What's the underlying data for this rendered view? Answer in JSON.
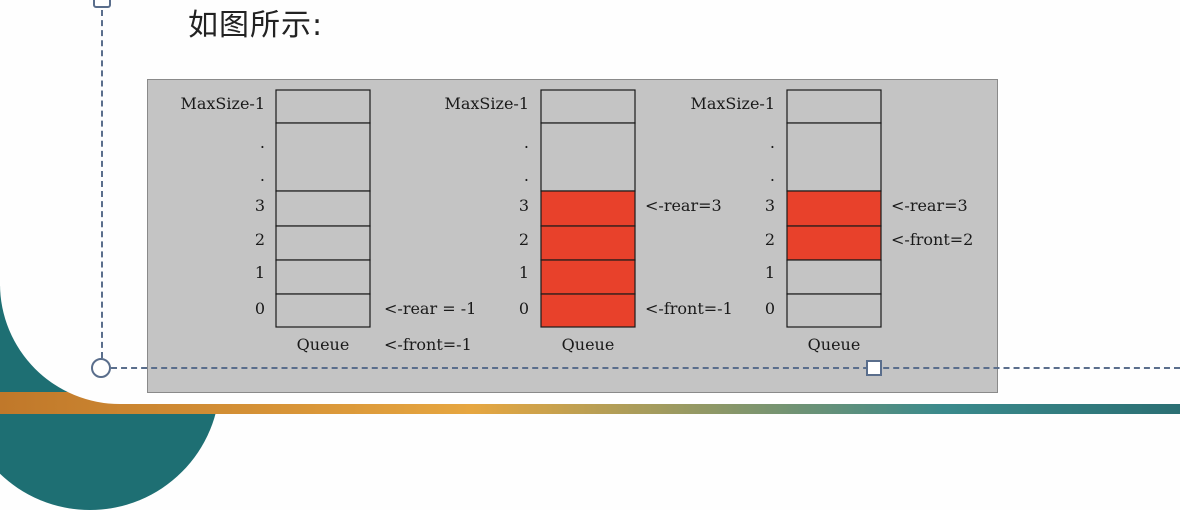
{
  "heading": "如图所示:",
  "colors": {
    "filled": "#e8412b",
    "empty": "#c4c4c4",
    "stroke": "#1a1a1a"
  },
  "row_labels": [
    "MaxSize-1",
    ".",
    ".",
    "3",
    "2",
    "1",
    "0"
  ],
  "queues": [
    {
      "caption": "Queue",
      "filled": [
        false,
        false,
        false,
        false,
        false,
        false
      ],
      "pointers": [
        {
          "row": "0",
          "text": "<-rear = -1"
        },
        {
          "row": "caption",
          "text": "<-front=-1"
        }
      ]
    },
    {
      "caption": "Queue",
      "filled": [
        false,
        false,
        true,
        true,
        true,
        true
      ],
      "pointers": [
        {
          "row": "3",
          "text": "<-rear=3"
        },
        {
          "row": "0",
          "text": "<-front=-1"
        }
      ]
    },
    {
      "caption": "Queue",
      "filled": [
        false,
        false,
        true,
        true,
        false,
        false
      ],
      "pointers": [
        {
          "row": "3",
          "text": "<-rear=3"
        },
        {
          "row": "2",
          "text": "<-front=2"
        }
      ]
    }
  ]
}
